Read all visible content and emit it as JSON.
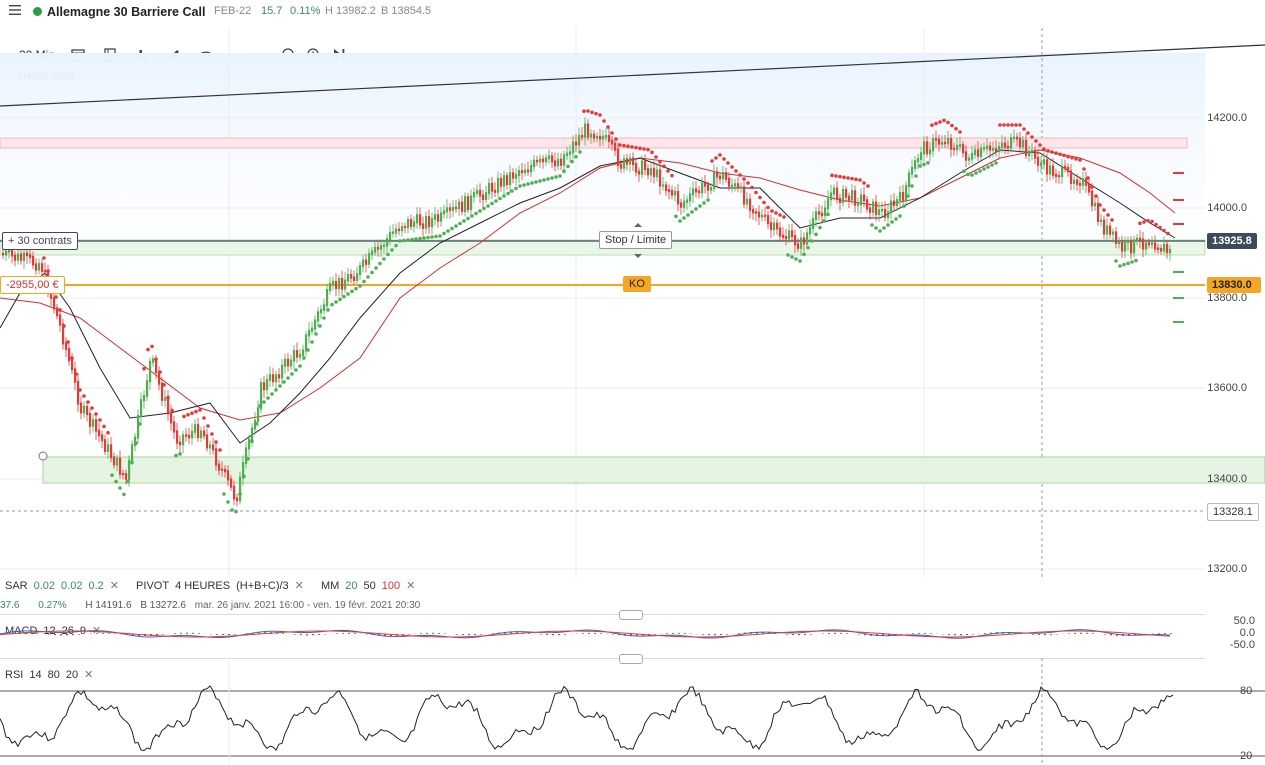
{
  "header": {
    "instrument": "Allemagne 30 Barriere Call",
    "expiry": "FEB-22",
    "change": "15.7",
    "change_pct": "0.11%",
    "high": "H 13982.2",
    "low": "B 13854.5"
  },
  "toolbar": {
    "interval": "30 Min",
    "chart_style": "Heikin-Ashi",
    "icons": [
      "calendar-icon",
      "layout-icon",
      "chart-type-icon",
      "draw-pencil-icon",
      "eye-icon",
      "more-icon",
      "zoom-out-icon",
      "zoom-in-icon",
      "play-icon"
    ]
  },
  "price_axis": {
    "ticks": [
      "14200.0",
      "14000.0",
      "13800.0",
      "13600.0",
      "13400.0",
      "13200.0"
    ],
    "current_price": "13925.8",
    "ko_price": "13830.0",
    "crosshair_price": "13328.1"
  },
  "position": {
    "contracts_label": "+ 30 contrats",
    "pnl_label": "-2955,00 €",
    "stop_limit_label": "Stop / Limite",
    "ko_label": "KO"
  },
  "indicators": {
    "sar": {
      "name": "SAR",
      "p1": "0.02",
      "p2": "0.02",
      "p3": "0.2"
    },
    "pivot": {
      "name": "PIVOT",
      "p1": "4 HEURES",
      "p2": "(H+B+C)/3"
    },
    "mm": {
      "name": "MM",
      "p1": "20",
      "p2": "50",
      "p3": "100"
    },
    "stats": {
      "v1": "37.6",
      "v2": "0.27%",
      "high": "H 14191.6",
      "low": "B 13272.6",
      "range": "mar. 26 janv. 2021 16:00 - ven. 19 févr. 2021 20:30"
    },
    "macd": {
      "name": "MACD",
      "p1": "12",
      "p2": "26",
      "p3": "9",
      "axis": [
        "50.0",
        "0.0",
        "-50.0"
      ]
    },
    "rsi": {
      "name": "RSI",
      "p1": "14",
      "p2": "80",
      "p3": "20",
      "axis": [
        "80",
        "20"
      ]
    }
  },
  "colors": {
    "up": "#4caf50",
    "down": "#e53935",
    "ko": "#f5a623",
    "price_tag": "#3c4a5c",
    "ma20": "#222222",
    "ma50": "#d32f2f"
  }
}
